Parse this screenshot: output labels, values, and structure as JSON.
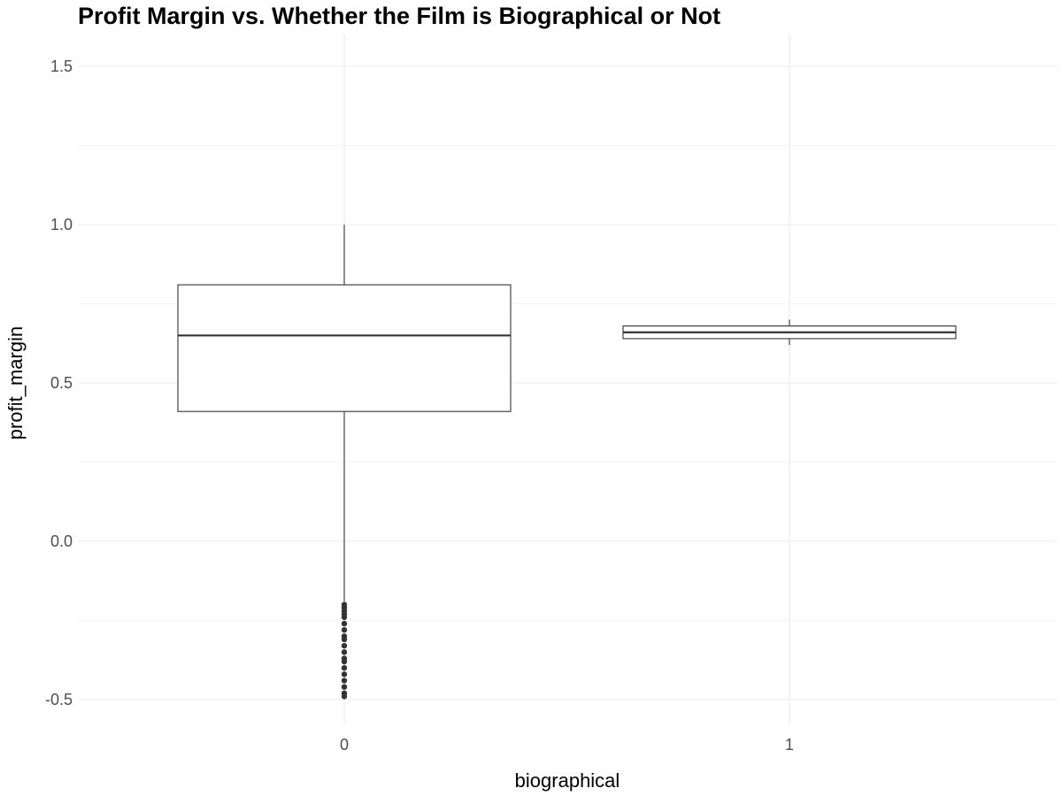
{
  "chart_data": {
    "type": "box",
    "title": "Profit Margin vs. Whether the Film is Biographical or Not",
    "xlabel": "biographical",
    "ylabel": "profit_margin",
    "categories": [
      "0",
      "1"
    ],
    "ylim": [
      -0.6,
      1.6
    ],
    "yticks": [
      -0.5,
      0.0,
      0.5,
      1.0,
      1.5
    ],
    "ytick_labels": [
      "-0.5",
      "0.0",
      "0.5",
      "1.0",
      "1.5"
    ],
    "grid": true,
    "colors": {
      "box_stroke": "#333333",
      "grid": "#ebebeb",
      "outlier": "#333333"
    },
    "boxes": [
      {
        "category": "0",
        "whisker_low": -0.19,
        "q1": 0.41,
        "median": 0.65,
        "q3": 0.81,
        "whisker_high": 1.0,
        "outliers": [
          -0.2,
          -0.21,
          -0.22,
          -0.23,
          -0.24,
          -0.26,
          -0.28,
          -0.3,
          -0.31,
          -0.33,
          -0.35,
          -0.37,
          -0.38,
          -0.4,
          -0.42,
          -0.44,
          -0.46,
          -0.48,
          -0.49
        ]
      },
      {
        "category": "1",
        "whisker_low": 0.62,
        "q1": 0.64,
        "median": 0.66,
        "q3": 0.68,
        "whisker_high": 0.7,
        "outliers": []
      }
    ]
  }
}
